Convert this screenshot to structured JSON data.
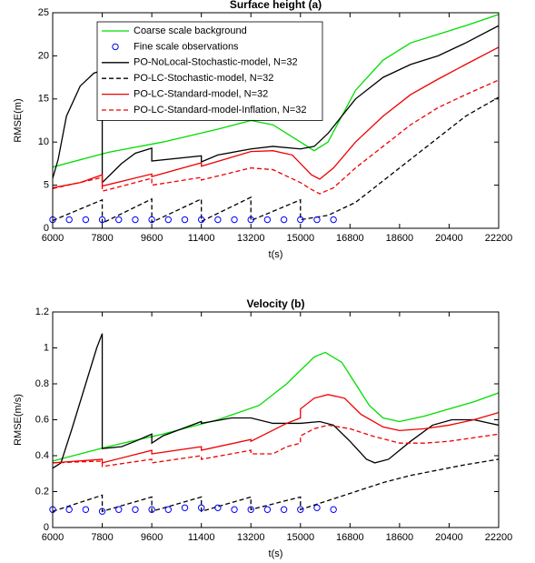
{
  "chart_data": [
    {
      "type": "line",
      "title": "Surface height (a)",
      "xlabel": "t(s)",
      "ylabel": "RMSE(m)",
      "xlim": [
        6000,
        22200
      ],
      "xticks": [
        6000,
        7800,
        9600,
        11400,
        13200,
        15000,
        16800,
        18600,
        20400,
        22200
      ],
      "ylim": [
        0,
        25
      ],
      "yticks": [
        0,
        5,
        10,
        15,
        20,
        25
      ],
      "grid": false,
      "legend": "upper-left",
      "series": [
        {
          "name": "Coarse scale background",
          "color": "#00dd00",
          "style": "solid",
          "x": [
            6000,
            8000,
            10000,
            12000,
            13200,
            14000,
            15000,
            15500,
            16000,
            17000,
            18000,
            19000,
            20000,
            21000,
            22200
          ],
          "values": [
            7.1,
            8.8,
            10,
            11.5,
            12.5,
            12,
            10,
            9,
            10,
            16,
            19.5,
            21.5,
            22.5,
            23.5,
            24.8
          ]
        },
        {
          "name": "Fine scale observations",
          "color": "#0000ff",
          "style": "circle",
          "x": [
            6000,
            6600,
            7200,
            7800,
            8400,
            9000,
            9600,
            10200,
            10800,
            11400,
            12000,
            12600,
            13200,
            13800,
            14400,
            15000,
            15600,
            16200
          ],
          "values": [
            1,
            1,
            1,
            1,
            1,
            1,
            1,
            1,
            1,
            1,
            1,
            1,
            1,
            1,
            1,
            1,
            1,
            1
          ]
        },
        {
          "name": "PO-NoLocal-Stochastic-model, N=32",
          "color": "#000000",
          "style": "solid",
          "x": [
            6000,
            6200,
            6500,
            7000,
            7500,
            7800,
            7800,
            8500,
            9000,
            9600,
            9600,
            11400,
            11400,
            12000,
            13200,
            14000,
            15000,
            15500,
            16000,
            17000,
            18000,
            19000,
            20000,
            21000,
            22200
          ],
          "values": [
            5.8,
            8,
            13,
            16.5,
            18,
            18.3,
            5.3,
            7.5,
            8.7,
            9.3,
            7.8,
            8.4,
            7.7,
            8.5,
            9.2,
            9.5,
            9.2,
            9.5,
            11,
            15,
            17.5,
            19,
            20,
            21.5,
            23.5
          ]
        },
        {
          "name": "PO-LC-Stochastic-model, N=32",
          "color": "#000000",
          "style": "dashed",
          "x": [
            6000,
            7800,
            7800,
            9600,
            9600,
            11400,
            11400,
            13200,
            13200,
            15000,
            15000,
            16000,
            17000,
            18000,
            19000,
            20000,
            21000,
            22200
          ],
          "values": [
            0.9,
            3.3,
            0.6,
            3.4,
            0.7,
            3.4,
            0.8,
            3.6,
            0.9,
            3.3,
            1,
            1.5,
            3,
            5.5,
            8,
            10.5,
            13,
            15.2
          ]
        },
        {
          "name": "PO-LC-Standard-model, N=32",
          "color": "#ee0000",
          "style": "solid",
          "x": [
            6000,
            7000,
            7800,
            7800,
            9600,
            9600,
            11400,
            11400,
            13200,
            14000,
            14700,
            15400,
            15700,
            16200,
            17000,
            18000,
            19000,
            20000,
            21000,
            22200
          ],
          "values": [
            4.7,
            5.3,
            6.2,
            4.9,
            6.3,
            6,
            7.6,
            7.2,
            8.9,
            9,
            8.5,
            6.2,
            5.7,
            7,
            10,
            13,
            15.5,
            17.3,
            19,
            21
          ]
        },
        {
          "name": "PO-LC-Standard-model-Inflation, N=32",
          "color": "#ee0000",
          "style": "dashed",
          "x": [
            6000,
            7800,
            7800,
            9600,
            9600,
            11400,
            11400,
            13200,
            14000,
            15000,
            15400,
            15700,
            16200,
            17000,
            18000,
            19000,
            20000,
            21000,
            22200
          ],
          "values": [
            4.6,
            5.9,
            4.3,
            5.8,
            5,
            5.9,
            5.6,
            7,
            6.8,
            5.3,
            4.5,
            4,
            4.7,
            7,
            9.5,
            12,
            14,
            15.5,
            17.2
          ]
        }
      ]
    },
    {
      "type": "line",
      "title": "Velocity (b)",
      "xlabel": "t(s)",
      "ylabel": "RMSE(m/s)",
      "xlim": [
        6000,
        22200
      ],
      "xticks": [
        6000,
        7800,
        9600,
        11400,
        13200,
        15000,
        16800,
        18600,
        20400,
        22200
      ],
      "ylim": [
        0,
        1.2
      ],
      "yticks": [
        0,
        0.2,
        0.4,
        0.6,
        0.8,
        1,
        1.2
      ],
      "grid": false,
      "series": [
        {
          "color": "#00dd00",
          "style": "solid",
          "x": [
            6000,
            8000,
            10000,
            12000,
            13500,
            14500,
            15500,
            15900,
            16500,
            17000,
            17500,
            18000,
            18600,
            19500,
            20400,
            21300,
            22200
          ],
          "values": [
            0.37,
            0.45,
            0.52,
            0.6,
            0.68,
            0.8,
            0.95,
            0.975,
            0.92,
            0.8,
            0.68,
            0.61,
            0.59,
            0.62,
            0.66,
            0.7,
            0.75
          ]
        },
        {
          "color": "#0000ff",
          "style": "circle",
          "x": [
            6000,
            6600,
            7200,
            7800,
            8400,
            9000,
            9600,
            10200,
            10800,
            11400,
            12000,
            12600,
            13200,
            13800,
            14400,
            15000,
            15600,
            16200
          ],
          "values": [
            0.1,
            0.1,
            0.1,
            0.09,
            0.1,
            0.1,
            0.1,
            0.1,
            0.11,
            0.11,
            0.11,
            0.1,
            0.1,
            0.1,
            0.1,
            0.1,
            0.11,
            0.1
          ]
        },
        {
          "color": "#000000",
          "style": "solid",
          "x": [
            6000,
            6300,
            6700,
            7200,
            7600,
            7800,
            7800,
            8500,
            9000,
            9600,
            9600,
            10000,
            11400,
            11400,
            12500,
            13200,
            14000,
            15000,
            15700,
            16200,
            16800,
            17400,
            17700,
            18200,
            19000,
            19800,
            20500,
            21300,
            22200
          ],
          "values": [
            0.33,
            0.36,
            0.55,
            0.8,
            1,
            1.08,
            0.44,
            0.45,
            0.48,
            0.52,
            0.47,
            0.51,
            0.59,
            0.58,
            0.61,
            0.61,
            0.58,
            0.58,
            0.59,
            0.57,
            0.48,
            0.38,
            0.36,
            0.38,
            0.48,
            0.57,
            0.6,
            0.6,
            0.57
          ]
        },
        {
          "color": "#000000",
          "style": "dashed",
          "x": [
            6000,
            7800,
            7800,
            9600,
            9600,
            11400,
            11400,
            13200,
            13200,
            15000,
            15000,
            16000,
            17000,
            18000,
            19000,
            20000,
            21000,
            22200
          ],
          "values": [
            0.09,
            0.18,
            0.09,
            0.17,
            0.09,
            0.17,
            0.09,
            0.17,
            0.1,
            0.17,
            0.1,
            0.15,
            0.2,
            0.25,
            0.29,
            0.32,
            0.35,
            0.38
          ]
        },
        {
          "color": "#ee0000",
          "style": "solid",
          "x": [
            6000,
            7800,
            7800,
            9600,
            9600,
            11400,
            11400,
            13200,
            13200,
            14500,
            15000,
            15000,
            15500,
            16000,
            16600,
            17200,
            18000,
            18600,
            19500,
            20400,
            21300,
            22200
          ],
          "values": [
            0.36,
            0.38,
            0.36,
            0.43,
            0.41,
            0.45,
            0.43,
            0.49,
            0.48,
            0.58,
            0.61,
            0.66,
            0.72,
            0.74,
            0.72,
            0.63,
            0.56,
            0.54,
            0.55,
            0.57,
            0.6,
            0.64
          ]
        },
        {
          "color": "#ee0000",
          "style": "dashed",
          "x": [
            6000,
            7800,
            7800,
            9600,
            9600,
            11400,
            11400,
            13200,
            13200,
            14000,
            14500,
            15000,
            15000,
            15500,
            16000,
            16800,
            17600,
            18600,
            19500,
            20400,
            21300,
            22200
          ],
          "values": [
            0.36,
            0.37,
            0.34,
            0.38,
            0.36,
            0.4,
            0.38,
            0.43,
            0.41,
            0.41,
            0.45,
            0.47,
            0.51,
            0.55,
            0.57,
            0.55,
            0.51,
            0.47,
            0.47,
            0.48,
            0.5,
            0.52
          ]
        }
      ]
    }
  ]
}
